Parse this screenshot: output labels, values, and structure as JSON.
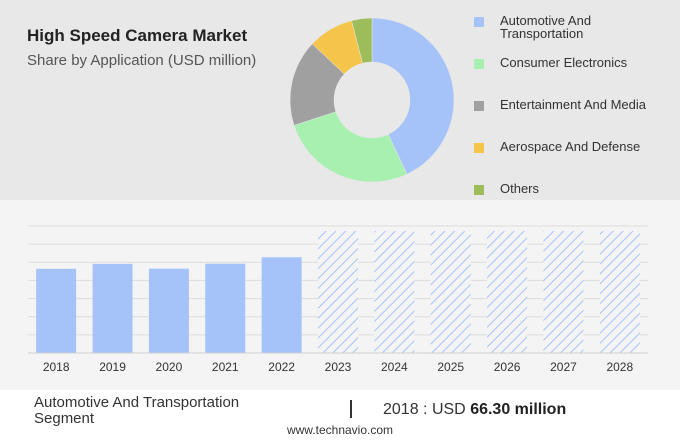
{
  "header": {
    "title": "High Speed Camera Market",
    "subtitle": "Share by Application (USD million)"
  },
  "chart_data": [
    {
      "type": "pie",
      "variant": "donut",
      "labels": [
        "Automotive And Transportation",
        "Consumer Electronics",
        "Entertainment And Media",
        "Aerospace And Defense",
        "Others"
      ],
      "values": [
        43,
        27,
        17,
        9,
        4
      ],
      "colors": [
        "#a5c3f8",
        "#a8f0b0",
        "#a0a0a0",
        "#f5c44a",
        "#9dbd5a"
      ],
      "legend_position": "right"
    },
    {
      "type": "bar",
      "categories": [
        "2018",
        "2019",
        "2020",
        "2021",
        "2022",
        "2023",
        "2024",
        "2025",
        "2026",
        "2027",
        "2028"
      ],
      "values": [
        66.3,
        70.2,
        66.4,
        70.3,
        75.4,
        96.0,
        96.0,
        96.0,
        96.0,
        96.0,
        96.0
      ],
      "forecast_from": "2023",
      "ylim": [
        0,
        100
      ],
      "grid": true,
      "colors": {
        "actual": "#a5c3f8",
        "forecast": "#a5c3f8"
      }
    }
  ],
  "footer": {
    "segment_label": "Automotive And Transportation Segment",
    "year": "2018",
    "separator": ":",
    "currency": "USD",
    "value_text": "66.30 million",
    "brand": "www.technavio.com"
  }
}
